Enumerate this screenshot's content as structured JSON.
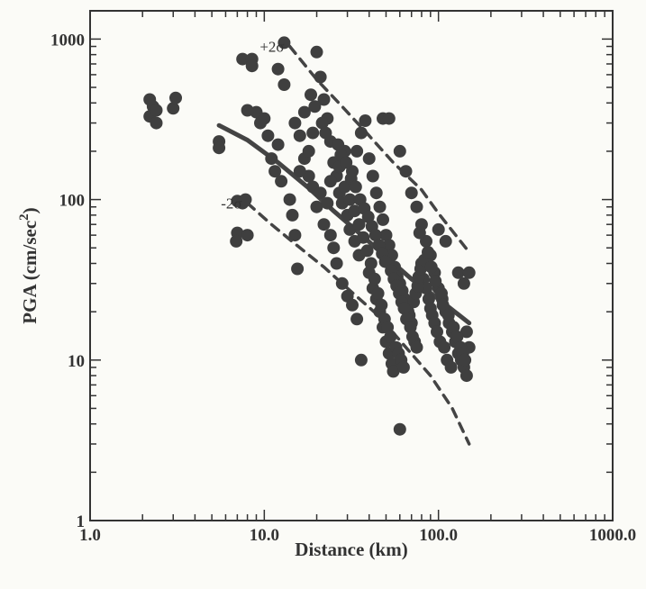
{
  "chart_data": {
    "type": "scatter",
    "title": "",
    "xlabel": "Distance (km)",
    "ylabel": "PGA (cm/sec 2)",
    "ylabel_main": "PGA (cm/sec",
    "ylabel_sup": "2",
    "ylabel_close": ")",
    "xscale": "log",
    "yscale": "log",
    "xlim": [
      1.0,
      1000.0
    ],
    "ylim": [
      1,
      1500
    ],
    "x_tick_labels": [
      "1.0",
      "10.0",
      "100.0",
      "1000.0"
    ],
    "x_tick_values": [
      1,
      10,
      100,
      1000
    ],
    "y_tick_labels": [
      "1",
      "10",
      "100",
      "1000"
    ],
    "y_tick_values": [
      1,
      10,
      100,
      1000
    ],
    "grid": false,
    "colors": {
      "points": "#3f3f3f",
      "curves": "#444444",
      "axes": "#333333"
    },
    "curves": [
      {
        "id": "median",
        "style": "solid",
        "points": [
          [
            5.5,
            290
          ],
          [
            8,
            235
          ],
          [
            12,
            170
          ],
          [
            18,
            118
          ],
          [
            25,
            85
          ],
          [
            35,
            62
          ],
          [
            50,
            44
          ],
          [
            70,
            32
          ],
          [
            100,
            24
          ],
          [
            150,
            17
          ]
        ]
      },
      {
        "id": "plus2sigma",
        "label": "+2σ",
        "style": "dashed",
        "points": [
          [
            14,
            900
          ],
          [
            20,
            560
          ],
          [
            28,
            380
          ],
          [
            40,
            250
          ],
          [
            55,
            170
          ],
          [
            80,
            115
          ],
          [
            100,
            82
          ],
          [
            150,
            47
          ]
        ]
      },
      {
        "id": "minus2sigma",
        "label": "-2σ",
        "style": "dashed",
        "points": [
          [
            8,
            95
          ],
          [
            11,
            70
          ],
          [
            15,
            53
          ],
          [
            22,
            38
          ],
          [
            30,
            28
          ],
          [
            45,
            19
          ],
          [
            65,
            12
          ],
          [
            90,
            8
          ],
          [
            120,
            5
          ],
          [
            150,
            3
          ]
        ]
      }
    ],
    "annotations": [
      {
        "text": "+2σ",
        "target": "plus2sigma"
      },
      {
        "text": "-2σ",
        "target": "minus2sigma"
      }
    ],
    "points": [
      [
        2.2,
        330
      ],
      [
        2.3,
        380
      ],
      [
        2.4,
        300
      ],
      [
        2.2,
        420
      ],
      [
        3.0,
        370
      ],
      [
        3.1,
        430
      ],
      [
        2.4,
        360
      ],
      [
        5.5,
        230
      ],
      [
        5.5,
        210
      ],
      [
        7.0,
        98
      ],
      [
        7.0,
        62
      ],
      [
        6.9,
        55
      ],
      [
        7.5,
        95
      ],
      [
        8.0,
        60
      ],
      [
        7.8,
        100
      ],
      [
        7.5,
        750
      ],
      [
        8.5,
        750
      ],
      [
        8.5,
        680
      ],
      [
        9.0,
        350
      ],
      [
        10.0,
        320
      ],
      [
        10.5,
        250
      ],
      [
        11.0,
        180
      ],
      [
        8.0,
        360
      ],
      [
        9.5,
        300
      ],
      [
        12.0,
        220
      ],
      [
        13.0,
        950
      ],
      [
        12.0,
        650
      ],
      [
        13.0,
        520
      ],
      [
        11.5,
        150
      ],
      [
        12.5,
        130
      ],
      [
        14.0,
        100
      ],
      [
        14.5,
        80
      ],
      [
        15.0,
        60
      ],
      [
        15.5,
        37
      ],
      [
        16.0,
        250
      ],
      [
        17.0,
        180
      ],
      [
        18.0,
        140
      ],
      [
        19.0,
        120
      ],
      [
        20.0,
        830
      ],
      [
        21.0,
        580
      ],
      [
        22.0,
        420
      ],
      [
        23.0,
        320
      ],
      [
        24.0,
        230
      ],
      [
        25.0,
        170
      ],
      [
        26.0,
        140
      ],
      [
        27.0,
        110
      ],
      [
        28.0,
        95
      ],
      [
        30.0,
        80
      ],
      [
        31.0,
        65
      ],
      [
        33.0,
        55
      ],
      [
        35.0,
        45
      ],
      [
        36.0,
        10
      ],
      [
        20.0,
        90
      ],
      [
        22.0,
        70
      ],
      [
        24.0,
        60
      ],
      [
        25.0,
        50
      ],
      [
        26.0,
        40
      ],
      [
        28.0,
        30
      ],
      [
        30.0,
        25
      ],
      [
        32.0,
        22
      ],
      [
        34.0,
        18
      ],
      [
        29.0,
        120
      ],
      [
        32.0,
        150
      ],
      [
        34.0,
        200
      ],
      [
        36.0,
        260
      ],
      [
        38.0,
        310
      ],
      [
        40.0,
        180
      ],
      [
        42.0,
        140
      ],
      [
        44.0,
        110
      ],
      [
        46.0,
        90
      ],
      [
        48.0,
        75
      ],
      [
        50.0,
        60
      ],
      [
        52.0,
        52
      ],
      [
        54.0,
        45
      ],
      [
        56.0,
        38
      ],
      [
        58.0,
        33
      ],
      [
        60.0,
        30
      ],
      [
        62.0,
        27
      ],
      [
        64.0,
        24
      ],
      [
        66.0,
        21
      ],
      [
        68.0,
        19
      ],
      [
        70.0,
        17
      ],
      [
        40.0,
        35
      ],
      [
        42.0,
        28
      ],
      [
        44.0,
        24
      ],
      [
        46.0,
        20
      ],
      [
        48.0,
        16
      ],
      [
        50.0,
        13
      ],
      [
        52.0,
        11
      ],
      [
        54.0,
        9.5
      ],
      [
        55.0,
        8.5
      ],
      [
        60.0,
        3.7
      ],
      [
        48.0,
        320
      ],
      [
        52.0,
        320
      ],
      [
        60.0,
        200
      ],
      [
        65.0,
        150
      ],
      [
        70.0,
        110
      ],
      [
        75.0,
        90
      ],
      [
        80.0,
        70
      ],
      [
        85.0,
        55
      ],
      [
        90.0,
        45
      ],
      [
        95.0,
        35
      ],
      [
        100.0,
        28
      ],
      [
        105.0,
        24
      ],
      [
        110.0,
        20
      ],
      [
        115.0,
        17
      ],
      [
        120.0,
        15
      ],
      [
        125.0,
        13
      ],
      [
        130.0,
        11
      ],
      [
        135.0,
        10
      ],
      [
        140.0,
        9
      ],
      [
        145.0,
        8
      ],
      [
        78.0,
        62
      ],
      [
        100.0,
        65
      ],
      [
        110.0,
        55
      ],
      [
        130.0,
        35
      ],
      [
        140.0,
        30
      ],
      [
        150.0,
        35
      ],
      [
        145.0,
        15
      ],
      [
        150.0,
        12
      ],
      [
        80.0,
        40
      ],
      [
        82.0,
        32
      ],
      [
        85.0,
        28
      ],
      [
        88.0,
        24
      ],
      [
        90.0,
        21
      ],
      [
        92.0,
        19
      ],
      [
        95.0,
        17
      ],
      [
        98.0,
        15
      ],
      [
        102.0,
        13
      ],
      [
        108.0,
        12
      ],
      [
        112.0,
        10
      ],
      [
        118.0,
        9
      ],
      [
        16.0,
        150
      ],
      [
        18.0,
        200
      ],
      [
        19.0,
        260
      ],
      [
        21.0,
        110
      ],
      [
        23.0,
        95
      ],
      [
        24.0,
        130
      ],
      [
        27.0,
        160
      ],
      [
        29.0,
        200
      ],
      [
        31.0,
        100
      ],
      [
        33.0,
        85
      ],
      [
        35.0,
        70
      ],
      [
        37.0,
        58
      ],
      [
        39.0,
        48
      ],
      [
        41.0,
        40
      ],
      [
        43.0,
        32
      ],
      [
        45.0,
        26
      ],
      [
        47.0,
        22
      ],
      [
        49.0,
        18
      ],
      [
        51.0,
        16
      ],
      [
        53.0,
        14
      ],
      [
        57.0,
        12
      ],
      [
        59.0,
        11
      ],
      [
        61.0,
        10
      ],
      [
        63.0,
        9
      ],
      [
        67.0,
        20
      ],
      [
        72.0,
        23
      ],
      [
        74.0,
        26
      ],
      [
        76.0,
        29
      ],
      [
        77.0,
        33
      ],
      [
        79.0,
        37
      ],
      [
        83.0,
        42
      ],
      [
        87.0,
        47
      ],
      [
        91.0,
        38
      ],
      [
        96.0,
        31
      ],
      [
        104.0,
        26
      ],
      [
        106.0,
        22
      ],
      [
        114.0,
        19
      ],
      [
        122.0,
        16
      ],
      [
        128.0,
        14
      ],
      [
        134.0,
        12
      ],
      [
        138.0,
        11
      ],
      [
        142.0,
        10
      ],
      [
        15.0,
        300
      ],
      [
        17.0,
        350
      ],
      [
        18.5,
        450
      ],
      [
        19.5,
        380
      ],
      [
        21.5,
        300
      ],
      [
        22.5,
        260
      ],
      [
        26.5,
        220
      ],
      [
        27.5,
        190
      ],
      [
        29.5,
        170
      ],
      [
        31.5,
        135
      ],
      [
        33.5,
        120
      ],
      [
        35.5,
        100
      ],
      [
        37.5,
        88
      ],
      [
        39.5,
        78
      ],
      [
        41.5,
        68
      ],
      [
        43.5,
        60
      ],
      [
        45.5,
        52
      ],
      [
        47.5,
        46
      ],
      [
        49.5,
        41
      ],
      [
        53.5,
        36
      ],
      [
        55.5,
        32
      ],
      [
        57.5,
        29
      ],
      [
        59.5,
        26
      ],
      [
        61.5,
        23
      ],
      [
        63.5,
        21
      ],
      [
        65.5,
        18
      ],
      [
        69.0,
        16
      ],
      [
        71.0,
        14
      ],
      [
        73.0,
        13
      ],
      [
        75.0,
        12
      ]
    ]
  }
}
